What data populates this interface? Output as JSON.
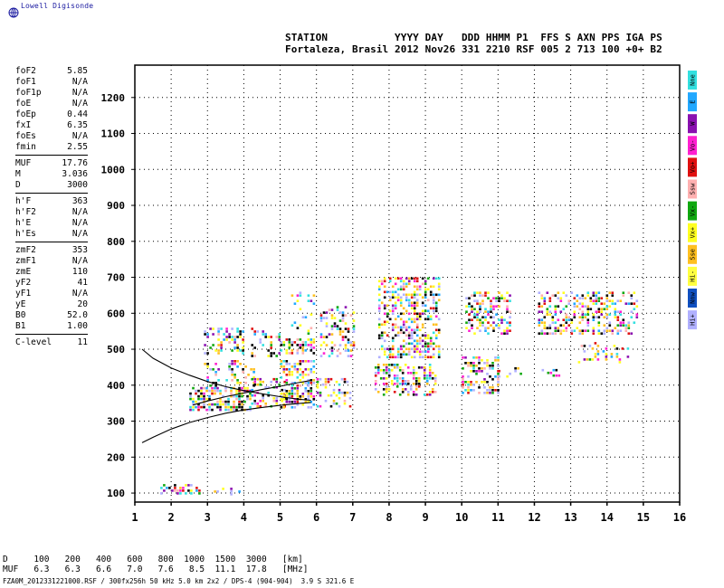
{
  "brand": {
    "name": "Lowell Digisonde"
  },
  "header": {
    "line1": "STATION           YYYY DAY   DDD HHMM P1  FFS S AXN PPS IGA PS",
    "line2": "Fortaleza, Brasil 2012 Nov26 331 2210 RSF 005 2 713 100 +0+ B2"
  },
  "params": {
    "group1": [
      {
        "key": "foF2",
        "value": "5.85"
      },
      {
        "key": "foF1",
        "value": "N/A"
      },
      {
        "key": "foF1p",
        "value": "N/A"
      },
      {
        "key": "foE",
        "value": "N/A"
      },
      {
        "key": "foEp",
        "value": "0.44"
      },
      {
        "key": "fxI",
        "value": "6.35"
      },
      {
        "key": "foEs",
        "value": "N/A"
      },
      {
        "key": "fmin",
        "value": "2.55"
      }
    ],
    "group2": [
      {
        "key": "MUF",
        "value": "17.76"
      },
      {
        "key": "M",
        "value": "3.036"
      },
      {
        "key": "D",
        "value": "3000"
      }
    ],
    "group3": [
      {
        "key": "h'F",
        "value": "363"
      },
      {
        "key": "h'F2",
        "value": "N/A"
      },
      {
        "key": "h'E",
        "value": "N/A"
      },
      {
        "key": "h'Es",
        "value": "N/A"
      }
    ],
    "group4": [
      {
        "key": "zmF2",
        "value": "353"
      },
      {
        "key": "zmF1",
        "value": "N/A"
      },
      {
        "key": "zmE",
        "value": "110"
      },
      {
        "key": "yF2",
        "value": "41"
      },
      {
        "key": "yF1",
        "value": "N/A"
      },
      {
        "key": "yE",
        "value": "20"
      },
      {
        "key": "B0",
        "value": "52.0"
      },
      {
        "key": "B1",
        "value": "1.00"
      }
    ],
    "group5": [
      {
        "key": "C-level",
        "value": "11"
      }
    ]
  },
  "legend": [
    {
      "label": "Nne",
      "color": "#33e0e0"
    },
    {
      "label": "E",
      "color": "#22a8ff"
    },
    {
      "label": "W",
      "color": "#8a10b0"
    },
    {
      "label": "Vo-",
      "color": "#ff20d0"
    },
    {
      "label": "Vo+",
      "color": "#e01010"
    },
    {
      "label": "Ssw",
      "color": "#ffb0b0"
    },
    {
      "label": "Vx-",
      "color": "#10a810"
    },
    {
      "label": "Vx+",
      "color": "#ffff20"
    },
    {
      "label": "Sse",
      "color": "#ffc020"
    },
    {
      "label": "Hi-",
      "color": "#ffff40"
    },
    {
      "label": "Nnw",
      "color": "#1050c0"
    },
    {
      "label": "Hi+",
      "color": "#b0b0ff"
    }
  ],
  "chart_data": {
    "type": "scatter",
    "title": "",
    "xlabel": "",
    "ylabel": "",
    "xlim": [
      1,
      16
    ],
    "ylim": [
      75,
      1290
    ],
    "x_ticks": [
      "1",
      "2",
      "3",
      "4",
      "5",
      "6",
      "7",
      "8",
      "9",
      "10",
      "11",
      "12",
      "13",
      "14",
      "15",
      "16"
    ],
    "y_ticks": [
      "100",
      "200",
      "300",
      "400",
      "500",
      "600",
      "700",
      "800",
      "900",
      "1000",
      "1100",
      "1200"
    ],
    "grid": true,
    "curves": [
      {
        "name": "",
        "x": [
          1.2,
          1.5,
          2.0,
          2.5,
          3.0,
          3.5,
          4.0,
          4.5,
          5.0,
          5.5,
          5.85
        ],
        "y": [
          500,
          475,
          448,
          428,
          410,
          396,
          385,
          376,
          368,
          361,
          358
        ]
      },
      {
        "name": "",
        "x": [
          1.2,
          1.5,
          2.0,
          2.5,
          3.0,
          3.5,
          4.0,
          4.5,
          5.0,
          5.5,
          5.85
        ],
        "y": [
          240,
          255,
          278,
          296,
          310,
          322,
          331,
          338,
          344,
          349,
          352
        ]
      },
      {
        "name": "",
        "x": [
          2.6,
          3.0,
          3.5,
          4.0,
          4.5,
          5.0,
          5.5,
          5.85
        ],
        "y": [
          345,
          356,
          368,
          378,
          388,
          397,
          407,
          413
        ]
      }
    ],
    "echo_clusters": [
      {
        "x": [
          1.7,
          2.8
        ],
        "y": [
          95,
          125
        ],
        "density": 0.45
      },
      {
        "x": [
          3.1,
          3.9
        ],
        "y": [
          95,
          115
        ],
        "density": 0.3
      },
      {
        "x": [
          2.5,
          4.2
        ],
        "y": [
          330,
          395
        ],
        "density": 0.65
      },
      {
        "x": [
          2.9,
          4.3
        ],
        "y": [
          395,
          470
        ],
        "density": 0.3
      },
      {
        "x": [
          2.9,
          4.0
        ],
        "y": [
          490,
          560
        ],
        "density": 0.3
      },
      {
        "x": [
          4.2,
          5.1
        ],
        "y": [
          340,
          420
        ],
        "density": 0.4
      },
      {
        "x": [
          4.2,
          5.0
        ],
        "y": [
          480,
          560
        ],
        "density": 0.2
      },
      {
        "x": [
          5.0,
          5.95
        ],
        "y": [
          340,
          470
        ],
        "density": 0.5
      },
      {
        "x": [
          5.0,
          5.9
        ],
        "y": [
          490,
          530
        ],
        "density": 0.55
      },
      {
        "x": [
          5.3,
          5.9
        ],
        "y": [
          540,
          660
        ],
        "density": 0.2
      },
      {
        "x": [
          6.0,
          6.9
        ],
        "y": [
          340,
          420
        ],
        "density": 0.3
      },
      {
        "x": [
          6.1,
          7.0
        ],
        "y": [
          480,
          620
        ],
        "density": 0.35
      },
      {
        "x": [
          7.6,
          9.3
        ],
        "y": [
          370,
          460
        ],
        "density": 0.5
      },
      {
        "x": [
          7.7,
          9.4
        ],
        "y": [
          480,
          700
        ],
        "density": 0.45
      },
      {
        "x": [
          10.0,
          11.0
        ],
        "y": [
          380,
          480
        ],
        "density": 0.45
      },
      {
        "x": [
          10.1,
          11.3
        ],
        "y": [
          540,
          660
        ],
        "density": 0.4
      },
      {
        "x": [
          11.0,
          11.6
        ],
        "y": [
          420,
          450
        ],
        "density": 0.4
      },
      {
        "x": [
          12.1,
          14.8
        ],
        "y": [
          540,
          660
        ],
        "density": 0.4
      },
      {
        "x": [
          12.2,
          12.7
        ],
        "y": [
          425,
          445
        ],
        "density": 0.3
      },
      {
        "x": [
          13.2,
          14.6
        ],
        "y": [
          460,
          520
        ],
        "density": 0.15
      }
    ]
  },
  "footer": {
    "line1": "D     100   200   400   600   800  1000  1500  3000   [km]",
    "line2": "MUF   6.3   6.3   6.6   7.0   7.6   8.5  11.1  17.8   [MHz]",
    "line3": "FZA0M_2012331221000.RSF / 300fx256h 50 kHz 5.0 km 2x2 / DPS-4 (904-904)  3.9 S 321.6 E"
  }
}
